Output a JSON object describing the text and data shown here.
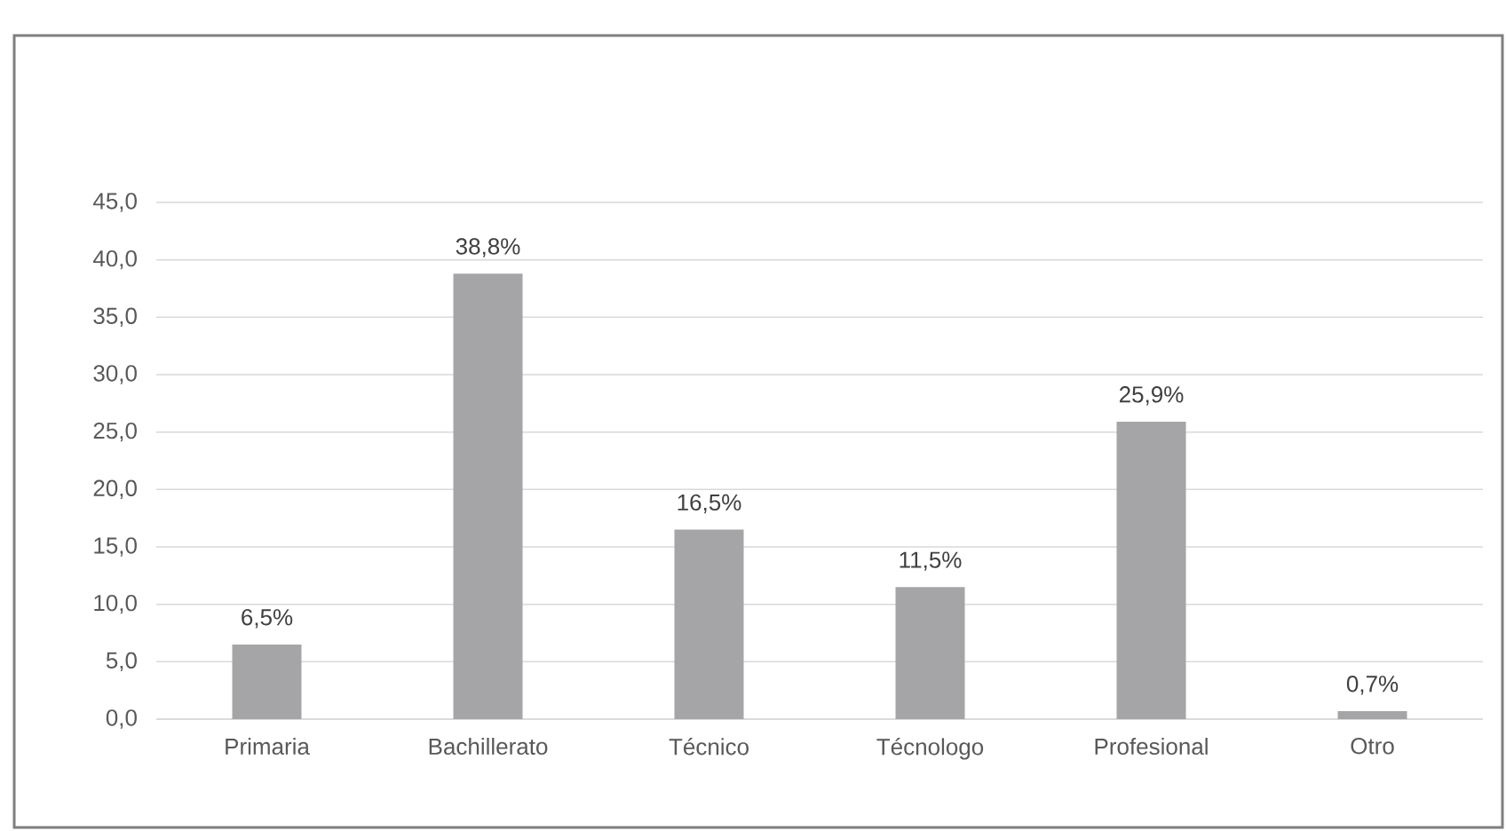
{
  "chart_data": {
    "type": "bar",
    "categories": [
      "Primaria",
      "Bachillerato",
      "Técnico",
      "Técnologo",
      "Profesional",
      "Otro"
    ],
    "values": [
      6.5,
      38.8,
      16.5,
      11.5,
      25.9,
      0.7
    ],
    "value_labels": [
      "6,5%",
      "38,8%",
      "16,5%",
      "11,5%",
      "25,9%",
      "0,7%"
    ],
    "color": "#a5a5a7",
    "ylim": [
      0,
      45
    ],
    "yticks": [
      {
        "value": 0,
        "label": "0,0"
      },
      {
        "value": 5,
        "label": "5,0"
      },
      {
        "value": 10,
        "label": "10,0"
      },
      {
        "value": 15,
        "label": "15,0"
      },
      {
        "value": 20,
        "label": "20,0"
      },
      {
        "value": 25,
        "label": "25,0"
      },
      {
        "value": 30,
        "label": "30,0"
      },
      {
        "value": 35,
        "label": "35,0"
      },
      {
        "value": 40,
        "label": "40,0"
      },
      {
        "value": 45,
        "label": "45,0"
      }
    ],
    "grid": "y"
  }
}
